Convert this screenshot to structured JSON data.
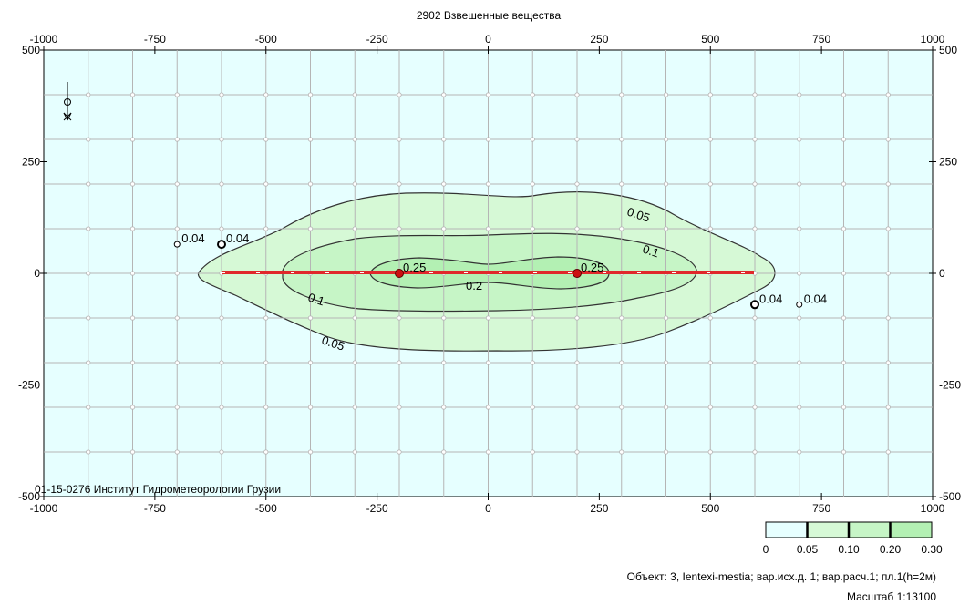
{
  "chart_data": {
    "type": "contour",
    "title": "2902 Взвешенные вещества",
    "x_ticks": [
      "-1000",
      "-750",
      "-500",
      "-250",
      "0",
      "250",
      "500",
      "750",
      "1000"
    ],
    "y_ticks": [
      "500",
      "250",
      "0",
      "-250",
      "-500"
    ],
    "xlim": [
      -1000,
      1000
    ],
    "ylim": [
      -500,
      500
    ],
    "grid": true,
    "grid_step": 100,
    "contour_levels": [
      "0.05",
      "0.1",
      "0.2",
      "0.25"
    ],
    "sources": [
      {
        "x": -200,
        "y": 0,
        "value": "0.25"
      },
      {
        "x": 200,
        "y": 0,
        "value": "0.25"
      }
    ],
    "point_labels": [
      {
        "x": -700,
        "y": 65,
        "value": "0.04"
      },
      {
        "x": -600,
        "y": 65,
        "value": "0.04"
      },
      {
        "x": 600,
        "y": -70,
        "value": "0.04"
      },
      {
        "x": 700,
        "y": -70,
        "value": "0.04"
      }
    ],
    "line_source": {
      "x_start": -600,
      "x_end": 600,
      "y": 0
    },
    "legend": {
      "ticks": [
        "0",
        "0.05",
        "0.10",
        "0.20",
        "0.30"
      ],
      "colors": [
        "#e6ffff",
        "#d6f9d6",
        "#c6f5c6",
        "#b3f0b3"
      ]
    },
    "colors": {
      "background": "#e6ffff",
      "zone_05": "#d6f9d6",
      "zone_1": "#c6f5c6",
      "zone_2": "#b3f0b3",
      "source_line": "#e0282b"
    }
  },
  "footer": {
    "org": "01-15-0276 Институт Гидрометеорологии Грузии",
    "object_line": "Объект: 3, Ientexi-mestia; вар.исх.д. 1; вар.расч.1; пл.1(h=2м)",
    "scale": "Масштаб 1:13100"
  },
  "icons": {
    "north_arrow": "north-arrow-icon"
  }
}
